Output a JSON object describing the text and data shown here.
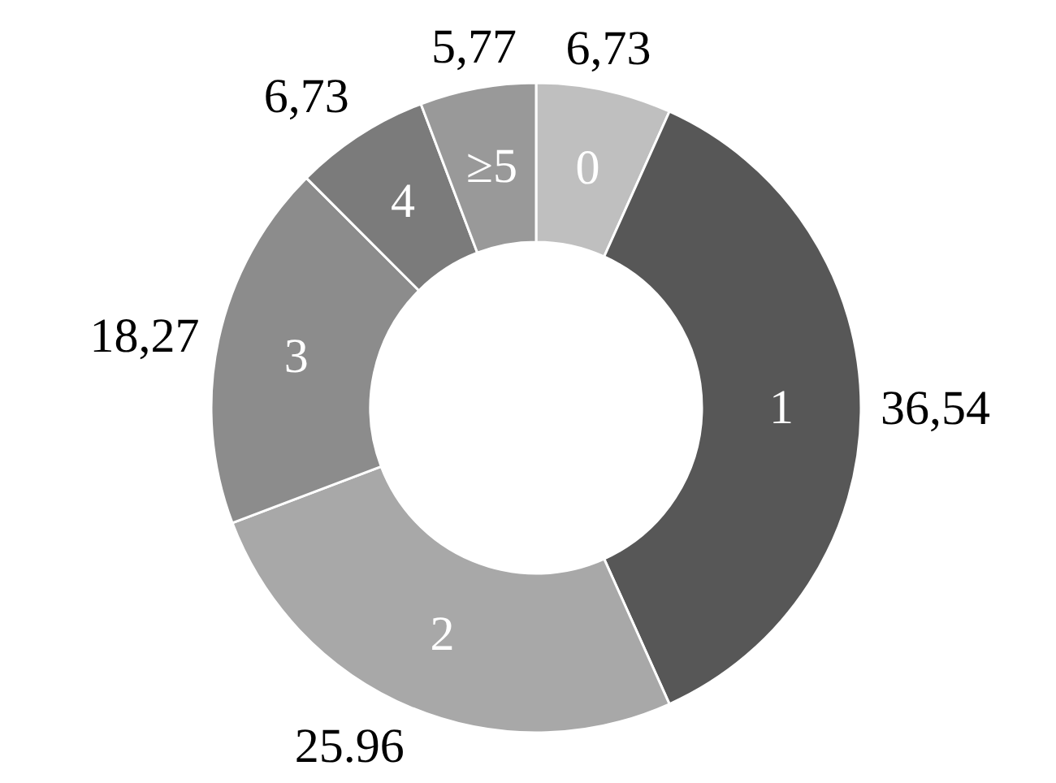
{
  "chart_data": {
    "type": "donut",
    "categories": [
      "0",
      "1",
      "2",
      "3",
      "4",
      "≥5"
    ],
    "values": [
      6.73,
      36.54,
      25.96,
      18.27,
      6.73,
      5.77
    ],
    "colors": [
      "#bfbfbf",
      "#575757",
      "#a8a8a8",
      "#8c8c8c",
      "#7b7b7b",
      "#999999"
    ],
    "value_labels": [
      "6,73",
      "36,54",
      "25.96",
      "18,27",
      "6,73",
      "5,77"
    ]
  }
}
